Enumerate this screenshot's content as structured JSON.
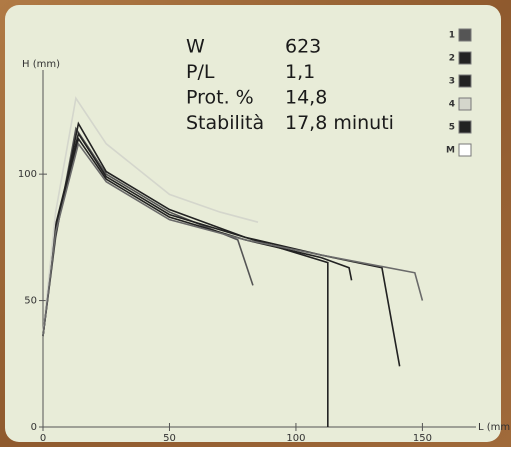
{
  "chart_data": {
    "type": "line",
    "y_label": "H (mm)",
    "x_label": "L (mm)",
    "xlim": [
      0,
      170
    ],
    "ylim": [
      0,
      140
    ],
    "xticks": [
      0,
      50,
      100,
      150
    ],
    "yticks": [
      0,
      50,
      100
    ],
    "legend": "top-right",
    "stats": [
      {
        "label": "W",
        "value": "623"
      },
      {
        "label": "P/L",
        "value": "1,1"
      },
      {
        "label": "Prot. %",
        "value": "14,8"
      },
      {
        "label": "Stabilità",
        "value": "17,8 minuti"
      }
    ],
    "series": [
      {
        "name": "1",
        "color": "#555555",
        "x": [
          0,
          5,
          13,
          25,
          50,
          77,
          83
        ],
        "values": [
          36,
          75,
          118,
          100,
          85,
          74,
          56
        ]
      },
      {
        "name": "2",
        "color": "#222222",
        "x": [
          0,
          5,
          14,
          25,
          50,
          80,
          112.6,
          112.6
        ],
        "values": [
          37,
          80,
          116,
          99,
          84,
          75,
          65,
          0
        ]
      },
      {
        "name": "3",
        "color": "#222222",
        "x": [
          0,
          5,
          14,
          25,
          50,
          80,
          110,
          121,
          122
        ],
        "values": [
          36,
          78,
          114,
          98,
          83,
          74,
          67,
          63,
          58
        ]
      },
      {
        "name": "4",
        "color": "#d4d6cc",
        "x": [
          0,
          5,
          13,
          25,
          50,
          70,
          85
        ],
        "values": [
          37,
          85,
          130,
          112,
          92,
          85,
          81
        ]
      },
      {
        "name": "5",
        "color": "#222222",
        "x": [
          0,
          5,
          14,
          25,
          50,
          80,
          110,
          134,
          141
        ],
        "values": [
          36,
          76,
          120,
          101,
          86,
          75,
          68,
          63,
          24
        ]
      },
      {
        "name": "M",
        "color": "#ffffff",
        "x": [
          0,
          5,
          14,
          25,
          50,
          80,
          110,
          147,
          150
        ],
        "values": [
          36,
          77,
          112,
          97,
          82,
          74,
          68,
          61,
          50
        ]
      }
    ]
  }
}
